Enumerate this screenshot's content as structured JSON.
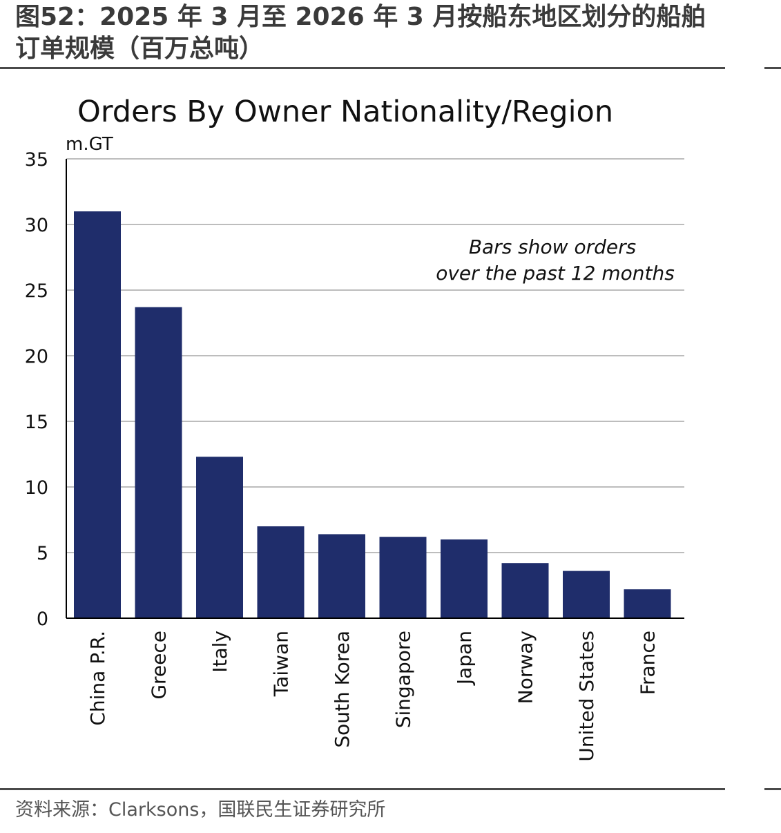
{
  "figure": {
    "title": "图52：2025 年 3 月至 2026 年 3 月按船东地区划分的船舶订单规模（百万总吨）",
    "source": "资料来源：Clarksons，国联民生证券研究所"
  },
  "chart_data": {
    "type": "bar",
    "title": "Orders By Owner Nationality/Region",
    "ylabel": "m.GT",
    "xlabel": "",
    "annotation": [
      "Bars show orders",
      "over the past 12 months"
    ],
    "categories": [
      "China P.R.",
      "Greece",
      "Italy",
      "Taiwan",
      "South Korea",
      "Singapore",
      "Japan",
      "Norway",
      "United States",
      "France"
    ],
    "values": [
      31.0,
      23.7,
      12.3,
      7.0,
      6.4,
      6.2,
      6.0,
      4.2,
      3.6,
      2.2
    ],
    "ylim": [
      0,
      35
    ],
    "yticks": [
      0,
      5,
      10,
      15,
      20,
      25,
      30,
      35
    ],
    "grid": true,
    "legend": "none",
    "colors": {
      "bar": "#1f2d6b",
      "grid": "#bdbdbd",
      "axis": "#000000"
    }
  }
}
